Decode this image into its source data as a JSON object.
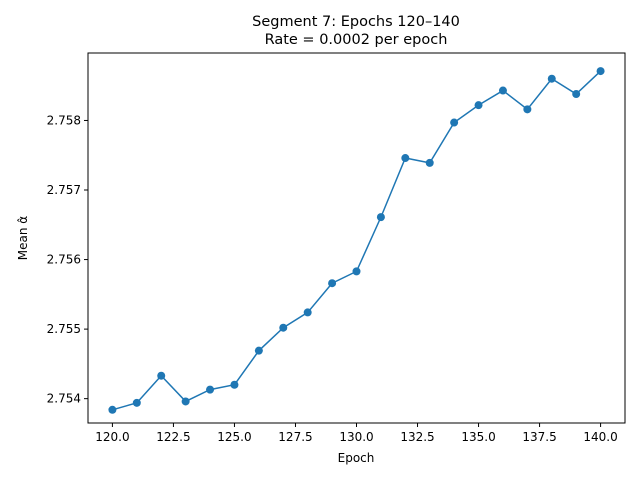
{
  "chart_data": {
    "type": "line",
    "title": "Segment 7: Epochs 120–140",
    "subtitle": "Rate = 0.0002 per epoch",
    "xlabel": "Epoch",
    "ylabel": "Mean α̂",
    "xlim": [
      119.0,
      141.0
    ],
    "ylim": [
      2.75365,
      2.75897
    ],
    "grid": false,
    "x_ticks": [
      120.0,
      122.5,
      125.0,
      127.5,
      130.0,
      132.5,
      135.0,
      137.5,
      140.0
    ],
    "x_tick_labels": [
      "120.0",
      "122.5",
      "125.0",
      "127.5",
      "130.0",
      "132.5",
      "135.0",
      "137.5",
      "140.0"
    ],
    "y_ticks": [
      2.754,
      2.755,
      2.756,
      2.757,
      2.758
    ],
    "y_tick_labels": [
      "2.754",
      "2.755",
      "2.756",
      "2.757",
      "2.758"
    ],
    "series": [
      {
        "color": "#1f77b4",
        "x": [
          120,
          121,
          122,
          123,
          124,
          125,
          126,
          127,
          128,
          129,
          130,
          131,
          132,
          133,
          134,
          135,
          136,
          137,
          138,
          139,
          140
        ],
        "y": [
          2.75384,
          2.75394,
          2.75433,
          2.75396,
          2.75413,
          2.7542,
          2.75469,
          2.75502,
          2.75524,
          2.75566,
          2.75583,
          2.75661,
          2.75746,
          2.75739,
          2.75797,
          2.75822,
          2.75843,
          2.75816,
          2.7586,
          2.75838,
          2.75871
        ]
      }
    ]
  }
}
